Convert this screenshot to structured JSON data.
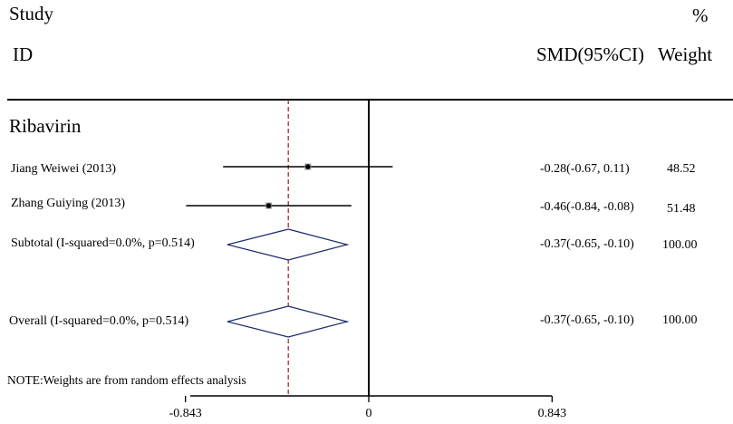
{
  "header": {
    "study_label": "Study",
    "id_label": "ID",
    "percent_label": "%",
    "effect_label": "SMD(95%CI)",
    "weight_label": "Weight"
  },
  "section": {
    "title": "Ribavirin"
  },
  "note": "NOTE:Weights are from random effects analysis",
  "chart_data": {
    "type": "forest",
    "measure": "SMD",
    "xlim": [
      -1.0,
      1.0
    ],
    "xticks": [
      {
        "value": -0.843,
        "label": "-0.843"
      },
      {
        "value": 0,
        "label": "0"
      },
      {
        "value": 0.843,
        "label": "0.843"
      }
    ],
    "null_line": 0,
    "overall_effect_line": -0.37,
    "studies": [
      {
        "label": "Jiang Weiwei (2013)",
        "est": -0.28,
        "lo": -0.67,
        "hi": 0.11,
        "ci_text": "-0.28(-0.67, 0.11)",
        "weight": "48.52"
      },
      {
        "label": "Zhang Guiying (2013)",
        "est": -0.46,
        "lo": -0.84,
        "hi": -0.08,
        "ci_text": "-0.46(-0.84, -0.08)",
        "weight": "51.48"
      }
    ],
    "subtotal": {
      "label": "Subtotal (I-squared=0.0%, p=0.514)",
      "est": -0.37,
      "lo": -0.65,
      "hi": -0.1,
      "ci_text": "-0.37(-0.65, -0.10)",
      "weight": "100.00"
    },
    "overall": {
      "label": "Overall (I-squared=0.0%, p=0.514)",
      "est": -0.37,
      "lo": -0.65,
      "hi": -0.1,
      "ci_text": "-0.37(-0.65, -0.10)",
      "weight": "100.00"
    }
  }
}
